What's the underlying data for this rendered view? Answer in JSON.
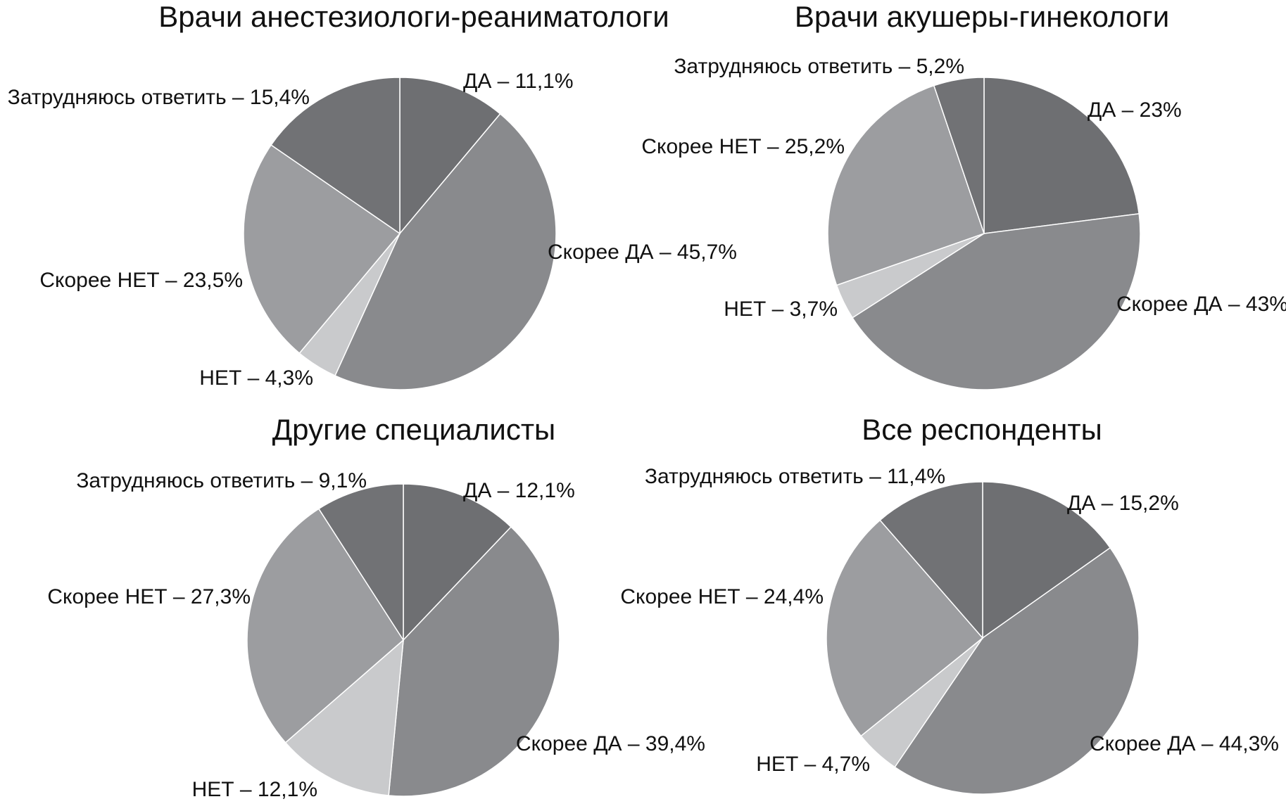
{
  "chart_data": [
    {
      "type": "pie",
      "title": "Врачи анестезиологи-реаниматологи",
      "categories": [
        "ДА",
        "Скорее ДА",
        "НЕТ",
        "Скорее НЕТ",
        "Затрудняюсь ответить"
      ],
      "values": [
        11.1,
        45.7,
        4.3,
        23.5,
        15.4
      ],
      "labels": [
        "ДА – 11,1%",
        "Скорее ДА – 45,7%",
        "НЕТ – 4,3%",
        "Скорее НЕТ – 23,5%",
        "Затрудняюсь ответить – 15,4%"
      ]
    },
    {
      "type": "pie",
      "title": "Врачи акушеры-гинекологи",
      "categories": [
        "ДА",
        "Скорее ДА",
        "НЕТ",
        "Скорее НЕТ",
        "Затрудняюсь ответить"
      ],
      "values": [
        23,
        43,
        3.7,
        25.2,
        5.2
      ],
      "labels": [
        "ДА – 23%",
        "Скорее ДА – 43%",
        "НЕТ – 3,7%",
        "Скорее НЕТ – 25,2%",
        "Затрудняюсь ответить – 5,2%"
      ]
    },
    {
      "type": "pie",
      "title": "Другие специалисты",
      "categories": [
        "ДА",
        "Скорее ДА",
        "НЕТ",
        "Скорее НЕТ",
        "Затрудняюсь ответить"
      ],
      "values": [
        12.1,
        39.4,
        12.1,
        27.3,
        9.1
      ],
      "labels": [
        "ДА – 12,1%",
        "Скорее ДА – 39,4%",
        "НЕТ – 12,1%",
        "Скорее НЕТ – 27,3%",
        "Затрудняюсь ответить – 9,1%"
      ]
    },
    {
      "type": "pie",
      "title": "Все респонденты",
      "categories": [
        "ДА",
        "Скорее ДА",
        "НЕТ",
        "Скорее НЕТ",
        "Затрудняюсь ответить"
      ],
      "values": [
        15.2,
        44.3,
        4.7,
        24.4,
        11.4
      ],
      "labels": [
        "ДА – 15,2%",
        "Скорее ДА – 44,3%",
        "НЕТ – 4,7%",
        "Скорее НЕТ – 24,4%",
        "Затрудняюсь ответить – 11,4%"
      ]
    }
  ],
  "colors": [
    "#6e6f72",
    "#898a8d",
    "#c9cacc",
    "#9c9da0",
    "#717275"
  ]
}
